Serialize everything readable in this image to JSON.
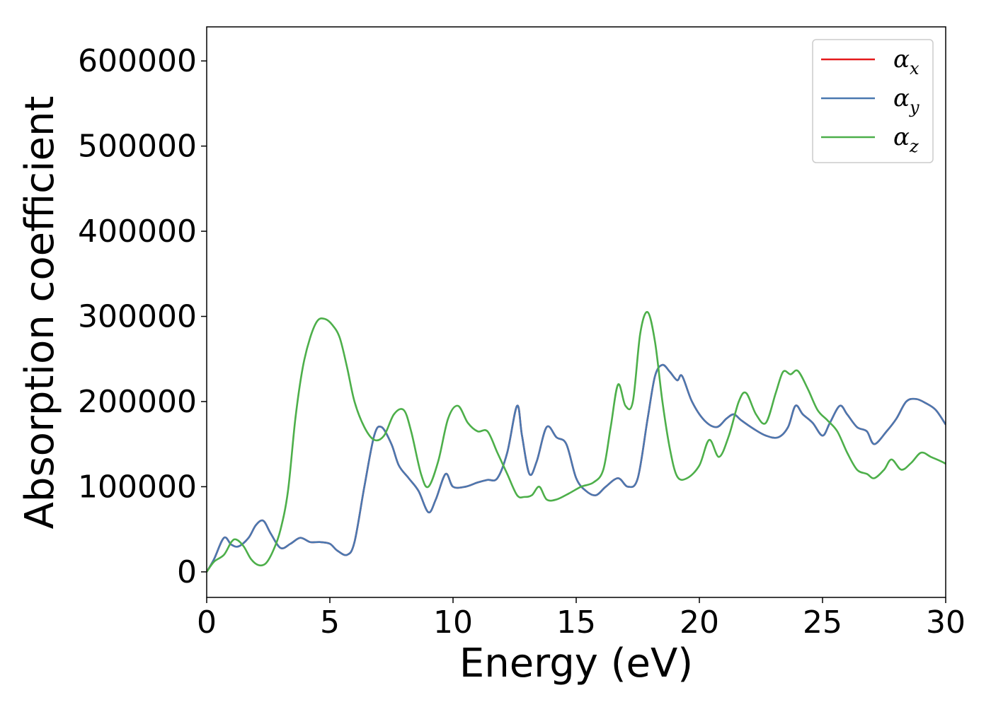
{
  "chart_data": {
    "type": "line",
    "title": "",
    "xlabel": "Energy (eV)",
    "ylabel": "Absorption coefficient",
    "xlim": [
      0,
      30
    ],
    "ylim": [
      -30000,
      640000
    ],
    "xticks": [
      0,
      5,
      10,
      15,
      20,
      25,
      30
    ],
    "xtick_labels": [
      "0",
      "5",
      "10",
      "15",
      "20",
      "25",
      "30"
    ],
    "yticks": [
      0,
      100000,
      200000,
      300000,
      400000,
      500000,
      600000
    ],
    "ytick_labels": [
      "0",
      "100000",
      "200000",
      "300000",
      "400000",
      "500000",
      "600000"
    ],
    "grid": false,
    "legend_position": "top-right",
    "series": [
      {
        "name": "α",
        "subscript": "x",
        "color": "#e41a1c",
        "x": [
          0,
          0.3,
          0.7,
          1.0,
          1.3,
          1.7,
          2.0,
          2.3,
          2.6,
          3.0,
          3.4,
          3.8,
          4.2,
          4.6,
          5.0,
          5.3,
          5.7,
          6.0,
          6.4,
          6.8,
          7.1,
          7.5,
          7.8,
          8.2,
          8.6,
          9.0,
          9.3,
          9.7,
          10.0,
          10.5,
          11.0,
          11.4,
          11.8,
          12.2,
          12.6,
          12.8,
          13.1,
          13.4,
          13.8,
          14.2,
          14.6,
          15.0,
          15.4,
          15.8,
          16.2,
          16.7,
          17.1,
          17.5,
          17.9,
          18.2,
          18.5,
          18.8,
          19.1,
          19.3,
          19.7,
          20.2,
          20.7,
          21.1,
          21.4,
          21.7,
          22.2,
          22.7,
          23.2,
          23.6,
          23.9,
          24.2,
          24.6,
          25.0,
          25.3,
          25.7,
          26.0,
          26.4,
          26.8,
          27.1,
          27.6,
          28.0,
          28.4,
          28.8,
          29.2,
          29.6,
          30.0
        ],
        "values": [
          0,
          15000,
          40000,
          32000,
          30000,
          40000,
          55000,
          60000,
          45000,
          28000,
          33000,
          40000,
          35000,
          35000,
          33000,
          25000,
          20000,
          35000,
          100000,
          160000,
          170000,
          150000,
          125000,
          110000,
          95000,
          70000,
          85000,
          115000,
          100000,
          100000,
          105000,
          108000,
          110000,
          140000,
          195000,
          160000,
          115000,
          130000,
          170000,
          158000,
          150000,
          110000,
          95000,
          90000,
          100000,
          110000,
          100000,
          110000,
          180000,
          230000,
          243000,
          235000,
          225000,
          230000,
          200000,
          178000,
          170000,
          180000,
          185000,
          178000,
          168000,
          160000,
          158000,
          170000,
          195000,
          185000,
          175000,
          160000,
          175000,
          195000,
          185000,
          170000,
          165000,
          150000,
          165000,
          180000,
          200000,
          203000,
          198000,
          190000,
          173000
        ]
      },
      {
        "name": "α",
        "subscript": "y",
        "color": "#4a78b0",
        "x": [
          0,
          0.3,
          0.7,
          1.0,
          1.3,
          1.7,
          2.0,
          2.3,
          2.6,
          3.0,
          3.4,
          3.8,
          4.2,
          4.6,
          5.0,
          5.3,
          5.7,
          6.0,
          6.4,
          6.8,
          7.1,
          7.5,
          7.8,
          8.2,
          8.6,
          9.0,
          9.3,
          9.7,
          10.0,
          10.5,
          11.0,
          11.4,
          11.8,
          12.2,
          12.6,
          12.8,
          13.1,
          13.4,
          13.8,
          14.2,
          14.6,
          15.0,
          15.4,
          15.8,
          16.2,
          16.7,
          17.1,
          17.5,
          17.9,
          18.2,
          18.5,
          18.8,
          19.1,
          19.3,
          19.7,
          20.2,
          20.7,
          21.1,
          21.4,
          21.7,
          22.2,
          22.7,
          23.2,
          23.6,
          23.9,
          24.2,
          24.6,
          25.0,
          25.3,
          25.7,
          26.0,
          26.4,
          26.8,
          27.1,
          27.6,
          28.0,
          28.4,
          28.8,
          29.2,
          29.6,
          30.0
        ],
        "values": [
          0,
          15000,
          40000,
          32000,
          30000,
          40000,
          55000,
          60000,
          45000,
          28000,
          33000,
          40000,
          35000,
          35000,
          33000,
          25000,
          20000,
          35000,
          100000,
          160000,
          170000,
          150000,
          125000,
          110000,
          95000,
          70000,
          85000,
          115000,
          100000,
          100000,
          105000,
          108000,
          110000,
          140000,
          195000,
          160000,
          115000,
          130000,
          170000,
          158000,
          150000,
          110000,
          95000,
          90000,
          100000,
          110000,
          100000,
          110000,
          180000,
          230000,
          243000,
          235000,
          225000,
          230000,
          200000,
          178000,
          170000,
          180000,
          185000,
          178000,
          168000,
          160000,
          158000,
          170000,
          195000,
          185000,
          175000,
          160000,
          175000,
          195000,
          185000,
          170000,
          165000,
          150000,
          165000,
          180000,
          200000,
          203000,
          198000,
          190000,
          173000
        ]
      },
      {
        "name": "α",
        "subscript": "z",
        "color": "#4daf4a",
        "x": [
          0,
          0.3,
          0.7,
          1.0,
          1.2,
          1.5,
          1.8,
          2.1,
          2.4,
          2.7,
          3.0,
          3.3,
          3.6,
          3.9,
          4.2,
          4.5,
          4.8,
          5.1,
          5.4,
          5.7,
          6.0,
          6.4,
          6.8,
          7.2,
          7.6,
          8.0,
          8.3,
          8.7,
          9.0,
          9.4,
          9.8,
          10.2,
          10.6,
          11.0,
          11.4,
          11.8,
          12.2,
          12.6,
          12.9,
          13.2,
          13.5,
          13.8,
          14.2,
          14.7,
          15.2,
          15.7,
          16.1,
          16.4,
          16.7,
          17.0,
          17.3,
          17.6,
          17.9,
          18.2,
          18.5,
          18.8,
          19.1,
          19.5,
          20.0,
          20.4,
          20.8,
          21.2,
          21.6,
          21.9,
          22.3,
          22.7,
          23.1,
          23.4,
          23.7,
          24.0,
          24.4,
          24.8,
          25.2,
          25.6,
          26.0,
          26.4,
          26.8,
          27.1,
          27.5,
          27.8,
          28.2,
          28.6,
          29.0,
          29.4,
          29.8,
          30.0
        ],
        "values": [
          0,
          12000,
          20000,
          35000,
          38000,
          30000,
          15000,
          8000,
          10000,
          25000,
          50000,
          95000,
          180000,
          240000,
          275000,
          295000,
          297000,
          290000,
          275000,
          240000,
          200000,
          170000,
          155000,
          160000,
          185000,
          190000,
          165000,
          115000,
          100000,
          130000,
          180000,
          195000,
          175000,
          165000,
          165000,
          140000,
          115000,
          90000,
          88000,
          90000,
          100000,
          85000,
          85000,
          92000,
          100000,
          105000,
          120000,
          170000,
          220000,
          195000,
          200000,
          280000,
          305000,
          270000,
          200000,
          145000,
          112000,
          110000,
          125000,
          155000,
          135000,
          160000,
          200000,
          210000,
          185000,
          175000,
          210000,
          235000,
          232000,
          236000,
          215000,
          190000,
          178000,
          165000,
          140000,
          120000,
          115000,
          110000,
          120000,
          132000,
          120000,
          128000,
          140000,
          135000,
          130000,
          127000
        ]
      }
    ]
  }
}
